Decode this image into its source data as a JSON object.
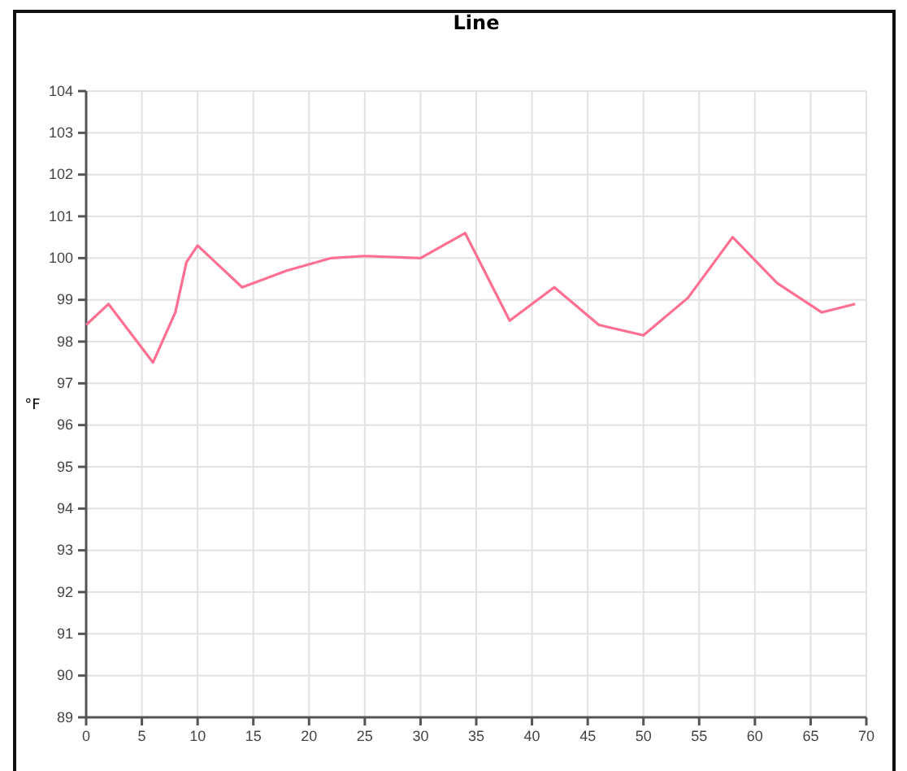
{
  "chart_data": {
    "type": "line",
    "title": "Line",
    "ylabel": "°F",
    "x": [
      0,
      2,
      6,
      8,
      9,
      10,
      14,
      18,
      22,
      25,
      30,
      34,
      38,
      42,
      46,
      50,
      54,
      58,
      62,
      66,
      69
    ],
    "series": [
      {
        "color": "#ff6f91",
        "values": [
          98.4,
          98.9,
          97.5,
          98.7,
          99.9,
          100.3,
          99.3,
          99.7,
          100,
          100.05,
          100,
          100.6,
          98.5,
          99.3,
          98.4,
          98.15,
          99.05,
          100.5,
          99.4,
          98.7,
          98.9
        ]
      }
    ],
    "xlim": [
      0,
      70
    ],
    "xticks": [
      0,
      5,
      10,
      15,
      20,
      25,
      30,
      35,
      40,
      45,
      50,
      55,
      60,
      65,
      70
    ],
    "ylim": [
      89,
      104
    ],
    "yticks": [
      89,
      90,
      91,
      92,
      93,
      94,
      95,
      96,
      97,
      98,
      99,
      100,
      101,
      102,
      103,
      104
    ],
    "grid": true,
    "marker": "none",
    "line_style": "solid"
  }
}
